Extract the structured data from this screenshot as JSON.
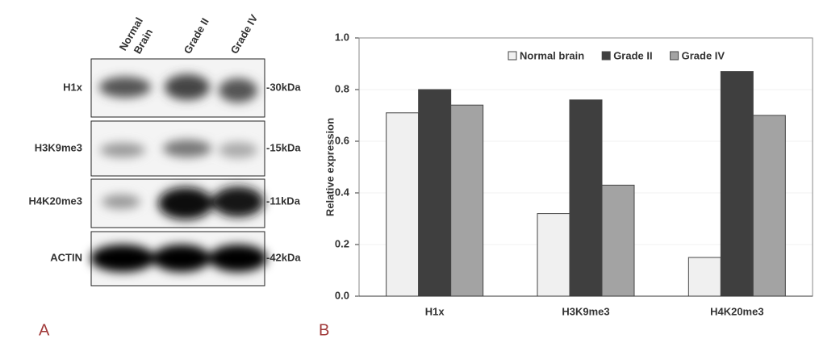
{
  "blot": {
    "lanes": [
      [
        "Normal",
        "Brain"
      ],
      [
        "Grade II"
      ],
      [
        "Grade IV"
      ]
    ],
    "rows": [
      {
        "label": "H1x",
        "size": "-30kDa"
      },
      {
        "label": "H3K9me3",
        "size": "-15kDa"
      },
      {
        "label": "H4K20me3",
        "size": "-11kDa"
      },
      {
        "label": "ACTIN",
        "size": "-42kDa"
      }
    ]
  },
  "panel_labels": [
    "A",
    "B"
  ],
  "chart_data": {
    "type": "bar",
    "y_label": "Relative expression",
    "categories": [
      "H1x",
      "H3K9me3",
      "H4K20me3"
    ],
    "series": [
      {
        "name": "Normal brain",
        "color": "#f0f0f0",
        "values": [
          0.71,
          0.32,
          0.15
        ]
      },
      {
        "name": "Grade II",
        "color": "#3f3f3f",
        "values": [
          0.8,
          0.76,
          0.87
        ]
      },
      {
        "name": "Grade IV",
        "color": "#a3a3a3",
        "values": [
          0.74,
          0.43,
          0.7
        ]
      }
    ],
    "ylim": [
      0,
      1
    ],
    "yticks": [
      {
        "value": 0,
        "label": "0.0"
      },
      {
        "value": 0.2,
        "label": "0.2"
      },
      {
        "value": 0.4,
        "label": "0.4"
      },
      {
        "value": 0.6,
        "label": "0.6"
      },
      {
        "value": 0.8,
        "label": "0.8"
      },
      {
        "value": 1,
        "label": "1.0"
      }
    ],
    "grid": true,
    "legend": "top"
  }
}
